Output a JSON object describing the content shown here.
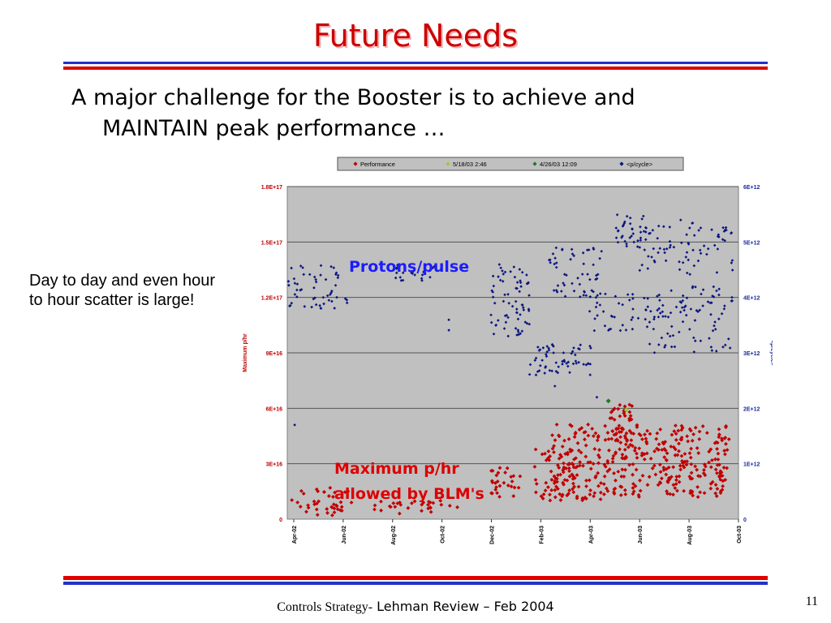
{
  "slide": {
    "title": "Future Needs",
    "bullet_line1": "A major challenge for the Booster is to achieve and",
    "bullet_line2": "MAINTAIN peak performance …",
    "side_note": "Day to day and even hour to hour scatter is large!",
    "footer_prefix": "Controls Strategy-",
    "footer_suffix": " Lehman Review – Feb 2004",
    "page_number": "11"
  },
  "chart_data": {
    "type": "scatter",
    "title": "",
    "xlabel": "",
    "ylabel": "Maximum p/hr",
    "ylabel_right": "<p/cycle>",
    "x_categories": [
      "Apr-02",
      "Jun-02",
      "Aug-02",
      "Oct-02",
      "Dec-02",
      "Feb-03",
      "Apr-03",
      "Jun-03",
      "Aug-03",
      "Oct-03"
    ],
    "yticks_left": [
      "0",
      "3E+16",
      "6E+16",
      "9E+16",
      "1.2E+17",
      "1.5E+17",
      "1.8E+17"
    ],
    "yticks_right": [
      "0",
      "1E+12",
      "2E+12",
      "3E+12",
      "4E+12",
      "5E+12",
      "6E+12"
    ],
    "ylim_left": [
      0,
      1.8e+17
    ],
    "ylim_right": [
      0,
      6000000000000.0
    ],
    "grid": "horizontal",
    "legend_position": "top",
    "colors": {
      "performance": "#c00000",
      "pcycle": "#0a1480",
      "green_light": "#99cc33",
      "green_dark": "#1f7a1f",
      "plot_bg": "#c0c0c0"
    },
    "annotations": [
      {
        "text": "Protons/pulse",
        "color": "#1c1cff"
      },
      {
        "text": "Maximum p/hr",
        "color": "#dd0000"
      },
      {
        "text": "allowed by BLM's",
        "color": "#dd0000"
      }
    ],
    "series": [
      {
        "name": "Performance",
        "marker": "diamond",
        "color": "#c00000",
        "axis": "left",
        "clusters": [
          {
            "x0": "2002-04-05",
            "x1": "2002-06-20",
            "y0": 2000000000000000.0,
            "y1": 1.7e+16,
            "n": 40
          },
          {
            "x0": "2002-07-15",
            "x1": "2002-10-25",
            "y0": 3000000000000000.0,
            "y1": 1e+16,
            "n": 30
          },
          {
            "x0": "2002-12-01",
            "x1": "2003-01-10",
            "y0": 1.2e+16,
            "y1": 2.8e+16,
            "n": 28
          },
          {
            "x0": "2003-01-25",
            "x1": "2003-03-28",
            "y0": 1e+16,
            "y1": 3.8e+16,
            "n": 60
          },
          {
            "x0": "2003-02-15",
            "x1": "2003-04-28",
            "y0": 1e+16,
            "y1": 5.2e+16,
            "n": 110
          },
          {
            "x0": "2003-04-25",
            "x1": "2003-05-25",
            "y0": 4e+16,
            "y1": 6.2e+16,
            "n": 40
          },
          {
            "x0": "2003-05-01",
            "x1": "2003-09-20",
            "y0": 1.2e+16,
            "y1": 5.2e+16,
            "n": 260
          }
        ]
      },
      {
        "name": "5/18/03 2:46",
        "marker": "diamond",
        "color": "#99cc33",
        "axis": "left",
        "points": [
          {
            "x": "2003-05-18",
            "y": 5.9e+16
          }
        ]
      },
      {
        "name": "4/26/03 12:09",
        "marker": "diamond",
        "color": "#1f7a1f",
        "axis": "left",
        "points": [
          {
            "x": "2003-04-26",
            "y": 6.4e+16
          }
        ]
      },
      {
        "name": "<p/cycle>",
        "marker": "diamond",
        "color": "#0a1480",
        "axis": "right",
        "clusters": [
          {
            "x0": "2002-04-01",
            "x1": "2002-06-05",
            "y0": 3800000000000.0,
            "y1": 4600000000000.0,
            "n": 50
          },
          {
            "x0": "2002-06-10",
            "x1": "2002-06-25",
            "y0": 3900000000000.0,
            "y1": 4000000000000.0,
            "n": 3
          },
          {
            "x0": "2002-08-10",
            "x1": "2002-09-30",
            "y0": 4300000000000.0,
            "y1": 4600000000000.0,
            "n": 20
          },
          {
            "x0": "2002-10-10",
            "x1": "2002-10-15",
            "y0": 3400000000000.0,
            "y1": 3600000000000.0,
            "n": 2
          },
          {
            "x0": "2002-12-01",
            "x1": "2003-01-20",
            "y0": 3300000000000.0,
            "y1": 4600000000000.0,
            "n": 70
          },
          {
            "x0": "2003-01-20",
            "x1": "2003-04-05",
            "y0": 2600000000000.0,
            "y1": 3200000000000.0,
            "n": 60
          },
          {
            "x0": "2003-02-10",
            "x1": "2003-04-20",
            "y0": 4000000000000.0,
            "y1": 4900000000000.0,
            "n": 55
          },
          {
            "x0": "2003-04-01",
            "x1": "2003-06-15",
            "y0": 3400000000000.0,
            "y1": 4100000000000.0,
            "n": 40
          },
          {
            "x0": "2003-05-05",
            "x1": "2003-06-10",
            "y0": 4900000000000.0,
            "y1": 5500000000000.0,
            "n": 30
          },
          {
            "x0": "2003-06-01",
            "x1": "2003-09-25",
            "y0": 4400000000000.0,
            "y1": 5400000000000.0,
            "n": 80
          },
          {
            "x0": "2003-06-15",
            "x1": "2003-09-25",
            "y0": 3000000000000.0,
            "y1": 4200000000000.0,
            "n": 90
          }
        ],
        "points": [
          {
            "x": "2002-04-10",
            "y": 1700000000000.0
          },
          {
            "x": "2003-04-12",
            "y": 2200000000000.0
          },
          {
            "x": "2003-02-20",
            "y": 2400000000000.0
          }
        ]
      }
    ]
  }
}
